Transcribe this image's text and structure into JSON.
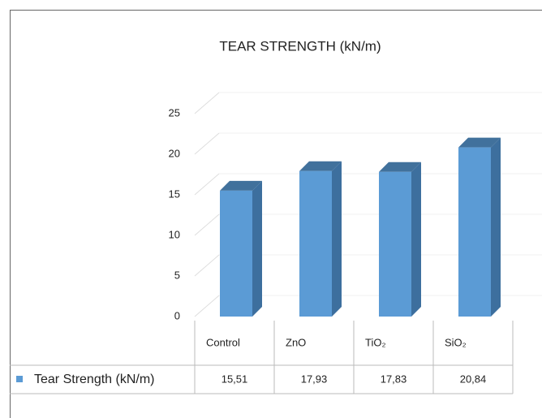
{
  "chart_data": {
    "type": "bar",
    "title": "TEAR STRENGTH (kN/m)",
    "categories": [
      "Control",
      "ZnO",
      "TiO₂",
      "SiO₂"
    ],
    "series": [
      {
        "name": "Tear Strength (kN/m)",
        "color": "#5b9bd5",
        "values": [
          15.51,
          17.93,
          17.83,
          20.84
        ],
        "value_labels": [
          "15,51",
          "17,93",
          "17,83",
          "20,84"
        ]
      }
    ],
    "ylim": [
      0,
      25
    ],
    "yticks": [
      0,
      5,
      10,
      15,
      20,
      25
    ],
    "grid": true
  }
}
